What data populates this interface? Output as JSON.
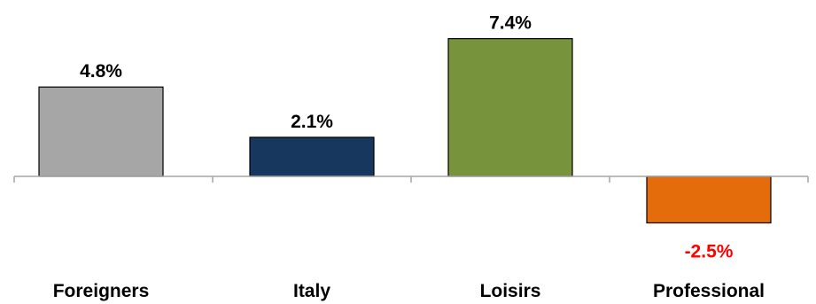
{
  "chart_data": {
    "type": "bar",
    "categories": [
      "Foreigners",
      "Italy",
      "Loisirs",
      "Professional"
    ],
    "values": [
      4.8,
      2.1,
      7.4,
      -2.5
    ],
    "value_labels": [
      "4.8%",
      "2.1%",
      "7.4%",
      "-2.5%"
    ],
    "colors": [
      "#a6a6a6",
      "#17375e",
      "#77933c",
      "#e46c0a"
    ],
    "negative_label_color": "#ff0000",
    "positive_label_color": "#000000",
    "axis_color": "#a6a6a6",
    "title": "",
    "xlabel": "",
    "ylabel": "",
    "grid": false,
    "legend": "none"
  }
}
